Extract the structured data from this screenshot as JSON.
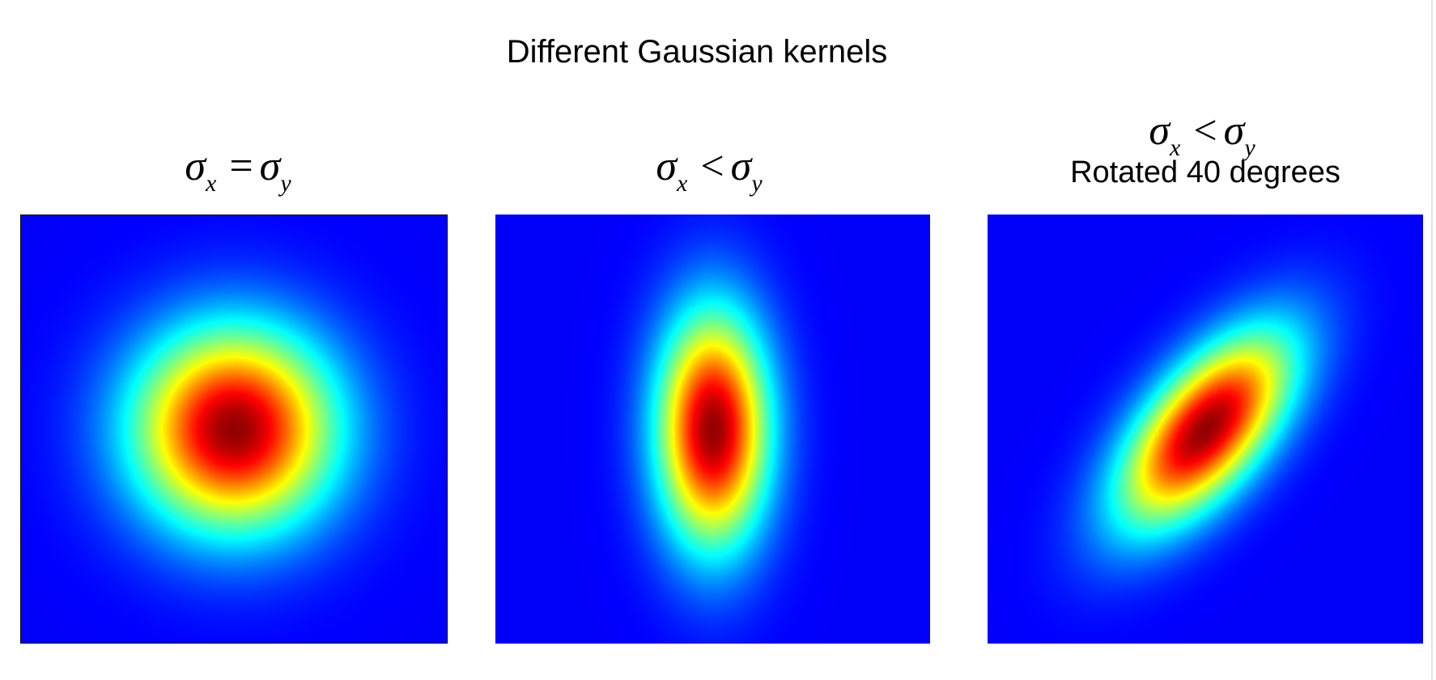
{
  "title": "Different Gaussian kernels",
  "panels": [
    {
      "label": {
        "sigma": "σ",
        "sub_left": "x",
        "relation": "=",
        "sub_right": "y"
      },
      "caption": "",
      "kernel": {
        "sigma_x": 1.0,
        "sigma_y": 1.0,
        "rotation_deg": 0
      }
    },
    {
      "label": {
        "sigma": "σ",
        "sub_left": "x",
        "relation": "<",
        "sub_right": "y"
      },
      "caption": "",
      "kernel": {
        "sigma_x": 0.55,
        "sigma_y": 1.15,
        "rotation_deg": 0
      }
    },
    {
      "label": {
        "sigma": "σ",
        "sub_left": "x",
        "relation": "<",
        "sub_right": "y"
      },
      "caption": "Rotated 40 degrees",
      "kernel": {
        "sigma_x": 0.55,
        "sigma_y": 1.15,
        "rotation_deg": 40
      }
    }
  ],
  "colors": {
    "background": "#060e7d",
    "colormap": "jet"
  }
}
